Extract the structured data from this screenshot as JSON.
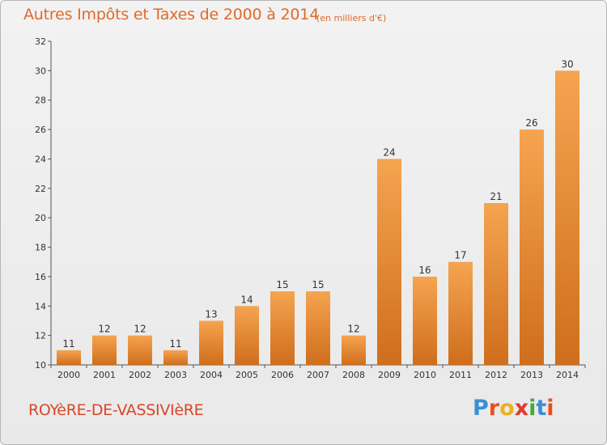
{
  "chart_data": {
    "type": "bar",
    "title": "Autres Impôts et Taxes de 2000 à 2014",
    "subtitle": "(en milliers d'€)",
    "categories": [
      "2000",
      "2001",
      "2002",
      "2003",
      "2004",
      "2005",
      "2006",
      "2007",
      "2008",
      "2009",
      "2010",
      "2011",
      "2012",
      "2013",
      "2014"
    ],
    "values": [
      11,
      12,
      12,
      11,
      13,
      14,
      15,
      15,
      12,
      24,
      16,
      17,
      21,
      26,
      30
    ],
    "ylim": [
      10,
      32
    ],
    "yticks": [
      10,
      12,
      14,
      16,
      18,
      20,
      22,
      24,
      26,
      28,
      30,
      32
    ],
    "xlabel": "",
    "ylabel": "",
    "grid": false,
    "bar_color_top": "#f5a450",
    "bar_color_bottom": "#cf6e1c"
  },
  "footer": {
    "commune": "ROYèRE-DE-VASSIVIèRE",
    "logo_letters": [
      "P",
      "r",
      "o",
      "x",
      "i",
      "t",
      "i"
    ],
    "logo_colors": [
      "#3a8fd6",
      "#e8501e",
      "#f0b020",
      "#e03a2a",
      "#4aa83a",
      "#3a8fd6",
      "#e8501e"
    ]
  }
}
